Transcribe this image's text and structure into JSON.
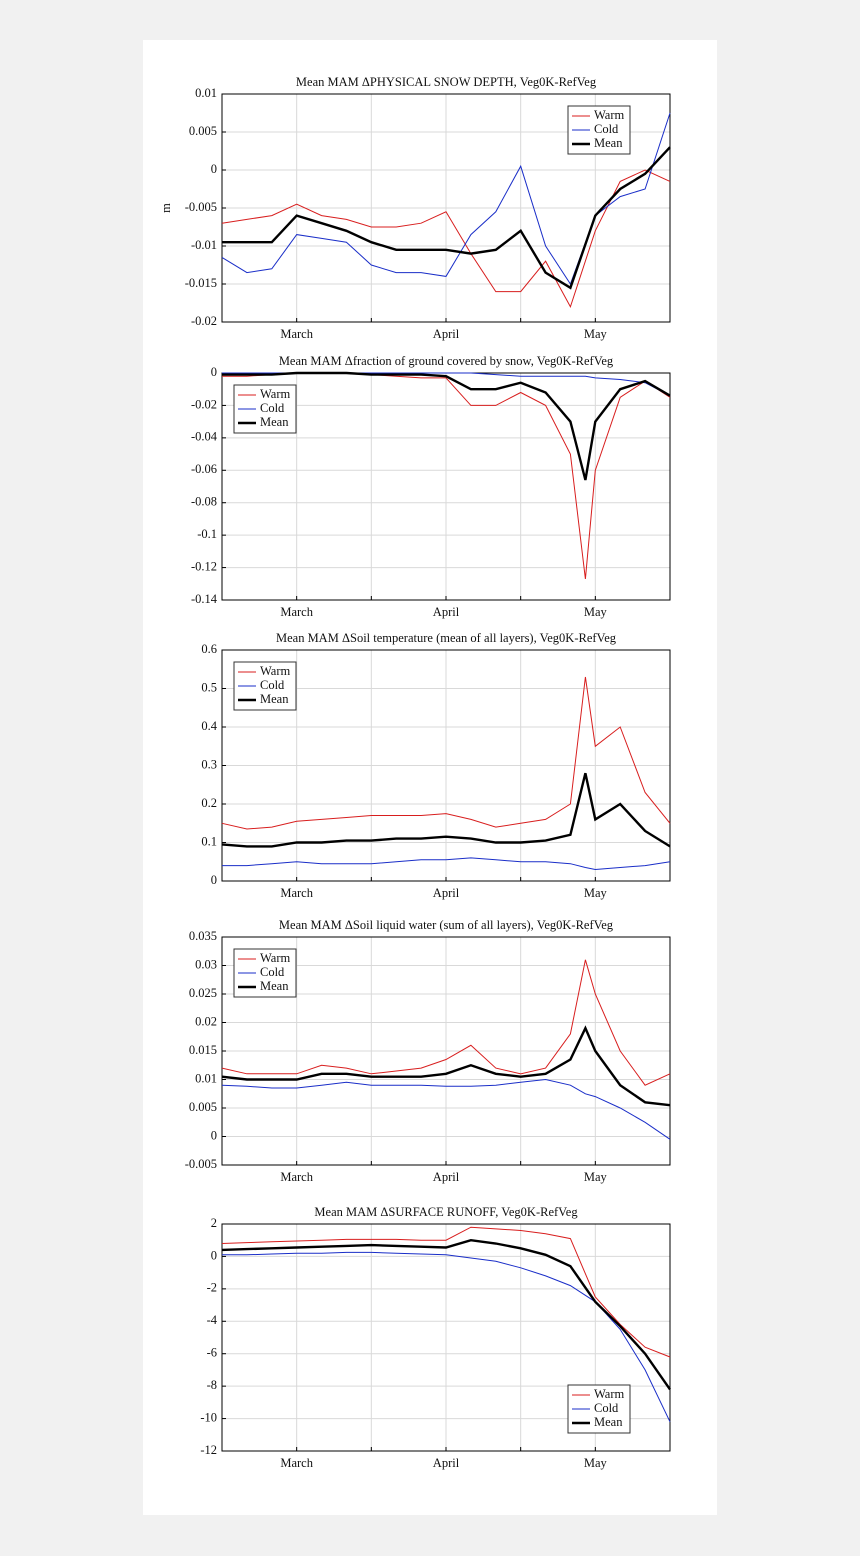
{
  "chart_data": [
    {
      "type": "line",
      "title": "Mean MAM ΔPHYSICAL SNOW DEPTH, Veg0K-RefVeg",
      "y_label": "m",
      "x": [
        0,
        5,
        10,
        15,
        20,
        25,
        30,
        35,
        40,
        45,
        50,
        55,
        60,
        65,
        70,
        75,
        80,
        85,
        90
      ],
      "xlim": [
        0,
        90
      ],
      "xticks": [
        {
          "value": 15,
          "label": "March"
        },
        {
          "value": 30,
          "label": null
        },
        {
          "value": 45,
          "label": "April"
        },
        {
          "value": 60,
          "label": null
        },
        {
          "value": 75,
          "label": "May"
        }
      ],
      "ylim": [
        -0.02,
        0.01
      ],
      "yticks": [
        -0.02,
        -0.015,
        -0.01,
        -0.005,
        0,
        0.005,
        0.01
      ],
      "grid": true,
      "legend": "upper right",
      "series": [
        {
          "name": "Warm",
          "color": "#d81e1e",
          "values": [
            -0.007,
            -0.0065,
            -0.006,
            -0.0045,
            -0.006,
            -0.0065,
            -0.0075,
            -0.0075,
            -0.007,
            -0.0055,
            -0.011,
            -0.016,
            -0.016,
            -0.012,
            -0.018,
            -0.008,
            -0.0015,
            0,
            -0.0015
          ]
        },
        {
          "name": "Cold",
          "color": "#1a2ec8",
          "values": [
            -0.0115,
            -0.0135,
            -0.013,
            -0.0085,
            -0.009,
            -0.0095,
            -0.0125,
            -0.0135,
            -0.0135,
            -0.014,
            -0.0085,
            -0.0055,
            0.0005,
            -0.01,
            -0.015,
            -0.006,
            -0.0035,
            -0.0025,
            0.0075
          ]
        },
        {
          "name": "Mean",
          "color": "#000000",
          "values": [
            -0.0095,
            -0.0095,
            -0.0095,
            -0.006,
            -0.007,
            -0.008,
            -0.0095,
            -0.0105,
            -0.0105,
            -0.0105,
            -0.011,
            -0.0105,
            -0.008,
            -0.0135,
            -0.0155,
            -0.006,
            -0.0025,
            -0.0005,
            0.003
          ]
        }
      ]
    },
    {
      "type": "line",
      "title": "Mean MAM Δfraction of ground covered by snow, Veg0K-RefVeg",
      "x": [
        0,
        5,
        10,
        15,
        20,
        25,
        30,
        35,
        40,
        45,
        50,
        55,
        60,
        65,
        70,
        73,
        75,
        80,
        85,
        90
      ],
      "xlim": [
        0,
        90
      ],
      "xticks": [
        {
          "value": 15,
          "label": "March"
        },
        {
          "value": 30,
          "label": null
        },
        {
          "value": 45,
          "label": "April"
        },
        {
          "value": 60,
          "label": null
        },
        {
          "value": 75,
          "label": "May"
        }
      ],
      "ylim": [
        -0.14,
        0
      ],
      "yticks": [
        -0.14,
        -0.12,
        -0.1,
        -0.08,
        -0.06,
        -0.04,
        -0.02,
        0
      ],
      "grid": true,
      "legend": "upper left",
      "series": [
        {
          "name": "Warm",
          "color": "#d81e1e",
          "values": [
            -0.002,
            -0.002,
            -0.001,
            0,
            0,
            0,
            -0.001,
            -0.002,
            -0.003,
            -0.003,
            -0.02,
            -0.02,
            -0.012,
            -0.02,
            -0.05,
            -0.127,
            -0.06,
            -0.015,
            -0.005,
            -0.015
          ]
        },
        {
          "name": "Cold",
          "color": "#1a2ec8",
          "values": [
            0,
            0,
            0,
            0,
            0,
            0,
            0,
            0,
            0,
            0,
            0,
            -0.001,
            -0.002,
            -0.002,
            -0.002,
            -0.002,
            -0.003,
            -0.004,
            -0.006,
            -0.014
          ]
        },
        {
          "name": "Mean",
          "color": "#000000",
          "values": [
            -0.001,
            -0.001,
            -0.001,
            0,
            0,
            0,
            -0.001,
            -0.001,
            -0.001,
            -0.002,
            -0.01,
            -0.01,
            -0.006,
            -0.012,
            -0.03,
            -0.066,
            -0.03,
            -0.01,
            -0.005,
            -0.014
          ]
        }
      ]
    },
    {
      "type": "line",
      "title": "Mean MAM ΔSoil temperature (mean of all layers), Veg0K-RefVeg",
      "x": [
        0,
        5,
        10,
        15,
        20,
        25,
        30,
        35,
        40,
        45,
        50,
        55,
        60,
        65,
        70,
        73,
        75,
        80,
        85,
        90
      ],
      "xlim": [
        0,
        90
      ],
      "xticks": [
        {
          "value": 15,
          "label": "March"
        },
        {
          "value": 30,
          "label": null
        },
        {
          "value": 45,
          "label": "April"
        },
        {
          "value": 60,
          "label": null
        },
        {
          "value": 75,
          "label": "May"
        }
      ],
      "ylim": [
        0,
        0.6
      ],
      "yticks": [
        0,
        0.1,
        0.2,
        0.3,
        0.4,
        0.5,
        0.6
      ],
      "grid": true,
      "legend": "upper left",
      "series": [
        {
          "name": "Warm",
          "color": "#d81e1e",
          "values": [
            0.15,
            0.135,
            0.14,
            0.155,
            0.16,
            0.165,
            0.17,
            0.17,
            0.17,
            0.175,
            0.16,
            0.14,
            0.15,
            0.16,
            0.2,
            0.53,
            0.35,
            0.4,
            0.23,
            0.15
          ]
        },
        {
          "name": "Cold",
          "color": "#1a2ec8",
          "values": [
            0.04,
            0.04,
            0.045,
            0.05,
            0.045,
            0.045,
            0.045,
            0.05,
            0.055,
            0.055,
            0.06,
            0.055,
            0.05,
            0.05,
            0.045,
            0.035,
            0.03,
            0.035,
            0.04,
            0.05
          ]
        },
        {
          "name": "Mean",
          "color": "#000000",
          "values": [
            0.095,
            0.09,
            0.09,
            0.1,
            0.1,
            0.105,
            0.105,
            0.11,
            0.11,
            0.115,
            0.11,
            0.1,
            0.1,
            0.105,
            0.12,
            0.28,
            0.16,
            0.2,
            0.13,
            0.09
          ]
        }
      ]
    },
    {
      "type": "line",
      "title": "Mean MAM ΔSoil liquid water (sum of all layers), Veg0K-RefVeg",
      "x": [
        0,
        5,
        10,
        15,
        20,
        25,
        30,
        35,
        40,
        45,
        50,
        55,
        60,
        65,
        70,
        73,
        75,
        80,
        85,
        90
      ],
      "xlim": [
        0,
        90
      ],
      "xticks": [
        {
          "value": 15,
          "label": "March"
        },
        {
          "value": 30,
          "label": null
        },
        {
          "value": 45,
          "label": "April"
        },
        {
          "value": 60,
          "label": null
        },
        {
          "value": 75,
          "label": "May"
        }
      ],
      "ylim": [
        -0.005,
        0.035
      ],
      "yticks": [
        -0.005,
        0,
        0.005,
        0.01,
        0.015,
        0.02,
        0.025,
        0.03,
        0.035
      ],
      "grid": true,
      "legend": "upper left",
      "series": [
        {
          "name": "Warm",
          "color": "#d81e1e",
          "values": [
            0.012,
            0.011,
            0.011,
            0.011,
            0.0125,
            0.012,
            0.011,
            0.0115,
            0.012,
            0.0135,
            0.016,
            0.012,
            0.011,
            0.012,
            0.018,
            0.031,
            0.025,
            0.015,
            0.009,
            0.011
          ]
        },
        {
          "name": "Cold",
          "color": "#1a2ec8",
          "values": [
            0.009,
            0.0088,
            0.0085,
            0.0085,
            0.009,
            0.0095,
            0.009,
            0.009,
            0.009,
            0.0088,
            0.0088,
            0.009,
            0.0095,
            0.01,
            0.009,
            0.0075,
            0.007,
            0.005,
            0.0025,
            -0.0005
          ]
        },
        {
          "name": "Mean",
          "color": "#000000",
          "values": [
            0.0105,
            0.01,
            0.01,
            0.01,
            0.011,
            0.011,
            0.0105,
            0.0105,
            0.0105,
            0.011,
            0.0125,
            0.011,
            0.0105,
            0.011,
            0.0135,
            0.019,
            0.015,
            0.009,
            0.006,
            0.0055
          ]
        }
      ]
    },
    {
      "type": "line",
      "title": "Mean MAM ΔSURFACE RUNOFF, Veg0K-RefVeg",
      "x": [
        0,
        5,
        10,
        15,
        20,
        25,
        30,
        35,
        40,
        45,
        50,
        55,
        60,
        65,
        70,
        75,
        80,
        85,
        90
      ],
      "xlim": [
        0,
        90
      ],
      "xticks": [
        {
          "value": 15,
          "label": "March"
        },
        {
          "value": 30,
          "label": null
        },
        {
          "value": 45,
          "label": "April"
        },
        {
          "value": 60,
          "label": null
        },
        {
          "value": 75,
          "label": "May"
        }
      ],
      "ylim": [
        -12,
        2
      ],
      "yticks": [
        -12,
        -10,
        -8,
        -6,
        -4,
        -2,
        0,
        2
      ],
      "grid": true,
      "legend": "lower right",
      "series": [
        {
          "name": "Warm",
          "color": "#d81e1e",
          "values": [
            0.8,
            0.85,
            0.9,
            0.95,
            1.0,
            1.05,
            1.05,
            1.05,
            1.0,
            1.0,
            1.8,
            1.7,
            1.6,
            1.4,
            1.1,
            -2.5,
            -4.2,
            -5.6,
            -6.2
          ]
        },
        {
          "name": "Cold",
          "color": "#1a2ec8",
          "values": [
            0.1,
            0.1,
            0.15,
            0.2,
            0.2,
            0.25,
            0.25,
            0.2,
            0.15,
            0.1,
            -0.1,
            -0.3,
            -0.7,
            -1.2,
            -1.8,
            -2.8,
            -4.5,
            -7,
            -10.2
          ]
        },
        {
          "name": "Mean",
          "color": "#000000",
          "values": [
            0.4,
            0.45,
            0.5,
            0.55,
            0.6,
            0.65,
            0.7,
            0.65,
            0.6,
            0.55,
            1.0,
            0.8,
            0.5,
            0.1,
            -0.6,
            -2.8,
            -4.3,
            -6,
            -8.2
          ]
        }
      ]
    }
  ]
}
